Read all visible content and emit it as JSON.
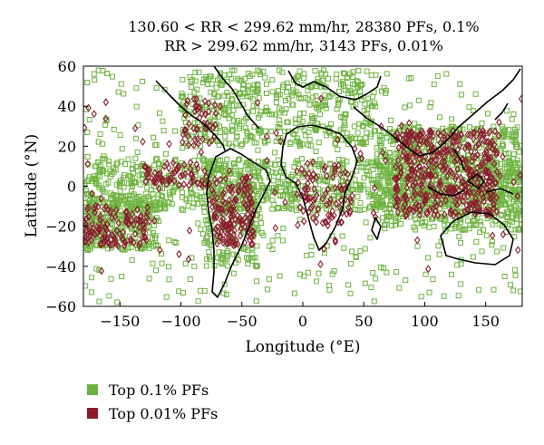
{
  "chart_data": {
    "type": "scatter",
    "title_lines": [
      "130.60 < RR < 299.62 mm/hr, 28380 PFs, 0.1%",
      "RR > 299.62 mm/hr, 3143 PFs, 0.01%"
    ],
    "xlabel": "Longitude (°E)",
    "ylabel": "Latitude (°N)",
    "xlim": [
      -180,
      180
    ],
    "ylim": [
      -60,
      60
    ],
    "x_ticks": [
      -150,
      -100,
      -50,
      0,
      50,
      100,
      150
    ],
    "y_ticks": [
      -60,
      -40,
      -20,
      0,
      20,
      40,
      60
    ],
    "x_tick_labels": [
      "−150",
      "−100",
      "−50",
      "0",
      "50",
      "100",
      "150"
    ],
    "y_tick_labels": [
      "−60",
      "−40",
      "−20",
      "0",
      "20",
      "40",
      "60"
    ],
    "grid": false,
    "legend_position": "bottom-left",
    "colors": {
      "top01": "#6db33f",
      "top001": "#8b1a2e",
      "coast": "#000000"
    },
    "series": [
      {
        "name": "Top 0.1% PFs",
        "marker": "square-open",
        "count": 28380,
        "regions": [
          {
            "lon": [
              -180,
              180
            ],
            "lat": [
              -12,
              14
            ]
          },
          {
            "lon": [
              -180,
              -120
            ],
            "lat": [
              -32,
              -5
            ]
          },
          {
            "lon": [
              60,
              180
            ],
            "lat": [
              -22,
              30
            ]
          },
          {
            "lon": [
              -100,
              60
            ],
            "lat": [
              20,
              58
            ]
          },
          {
            "lon": [
              -80,
              -35
            ],
            "lat": [
              -40,
              10
            ]
          },
          {
            "lon": [
              -180,
              180
            ],
            "lat": [
              -58,
              58
            ]
          }
        ]
      },
      {
        "name": "Top 0.01% PFs",
        "marker": "diamond-open",
        "count": 3143,
        "regions": [
          {
            "lon": [
              75,
              160
            ],
            "lat": [
              -15,
              28
            ]
          },
          {
            "lon": [
              -180,
              -125
            ],
            "lat": [
              -30,
              -10
            ]
          },
          {
            "lon": [
              -130,
              -75
            ],
            "lat": [
              0,
              12
            ]
          },
          {
            "lon": [
              -75,
              -40
            ],
            "lat": [
              -30,
              5
            ]
          },
          {
            "lon": [
              -5,
              40
            ],
            "lat": [
              -20,
              12
            ]
          },
          {
            "lon": [
              -100,
              -70
            ],
            "lat": [
              20,
              45
            ]
          },
          {
            "lon": [
              -180,
              180
            ],
            "lat": [
              -45,
              45
            ]
          }
        ]
      }
    ]
  },
  "legend": {
    "items": [
      {
        "label": "Top 0.1% PFs",
        "color": "#6db33f"
      },
      {
        "label": "Top 0.01% PFs",
        "color": "#8b1a2e"
      }
    ]
  }
}
